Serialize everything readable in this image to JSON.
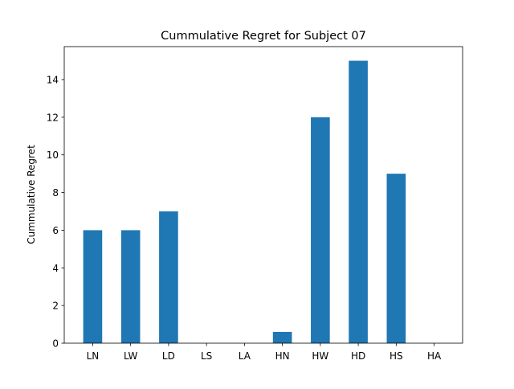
{
  "chart_data": {
    "type": "bar",
    "title": "Cummulative Regret for Subject 07",
    "xlabel": "",
    "ylabel": "Cummulative Regret",
    "categories": [
      "LN",
      "LW",
      "LD",
      "LS",
      "LA",
      "HN",
      "HW",
      "HD",
      "HS",
      "HA"
    ],
    "values": [
      6,
      6,
      7,
      0,
      0,
      0.6,
      12,
      15,
      9,
      0
    ],
    "ylim": [
      0,
      15.75
    ],
    "yticks": [
      0,
      2,
      4,
      6,
      8,
      10,
      12,
      14
    ],
    "grid": false,
    "legend": "none",
    "bar_color": "#1f77b4"
  }
}
